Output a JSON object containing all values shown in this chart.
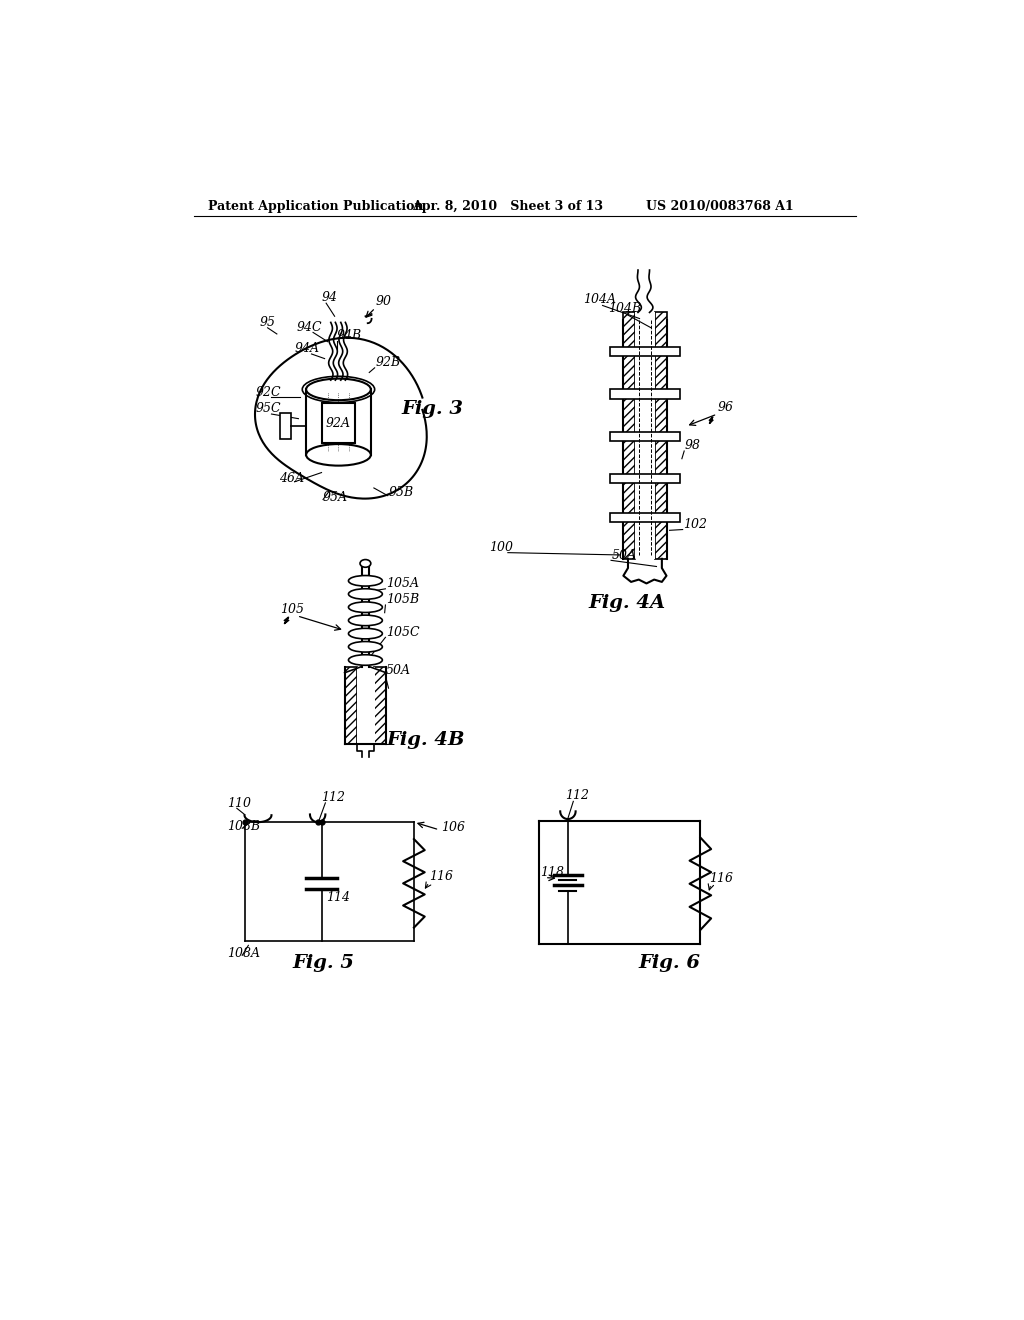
{
  "header_left": "Patent Application Publication",
  "header_mid": "Apr. 8, 2010   Sheet 3 of 13",
  "header_right": "US 2010/0083768 A1",
  "fig3_label": "Fig. 3",
  "fig4a_label": "Fig. 4A",
  "fig4b_label": "Fig. 4B",
  "fig5_label": "Fig. 5",
  "fig6_label": "Fig. 6",
  "bg_color": "#ffffff",
  "line_color": "#000000"
}
